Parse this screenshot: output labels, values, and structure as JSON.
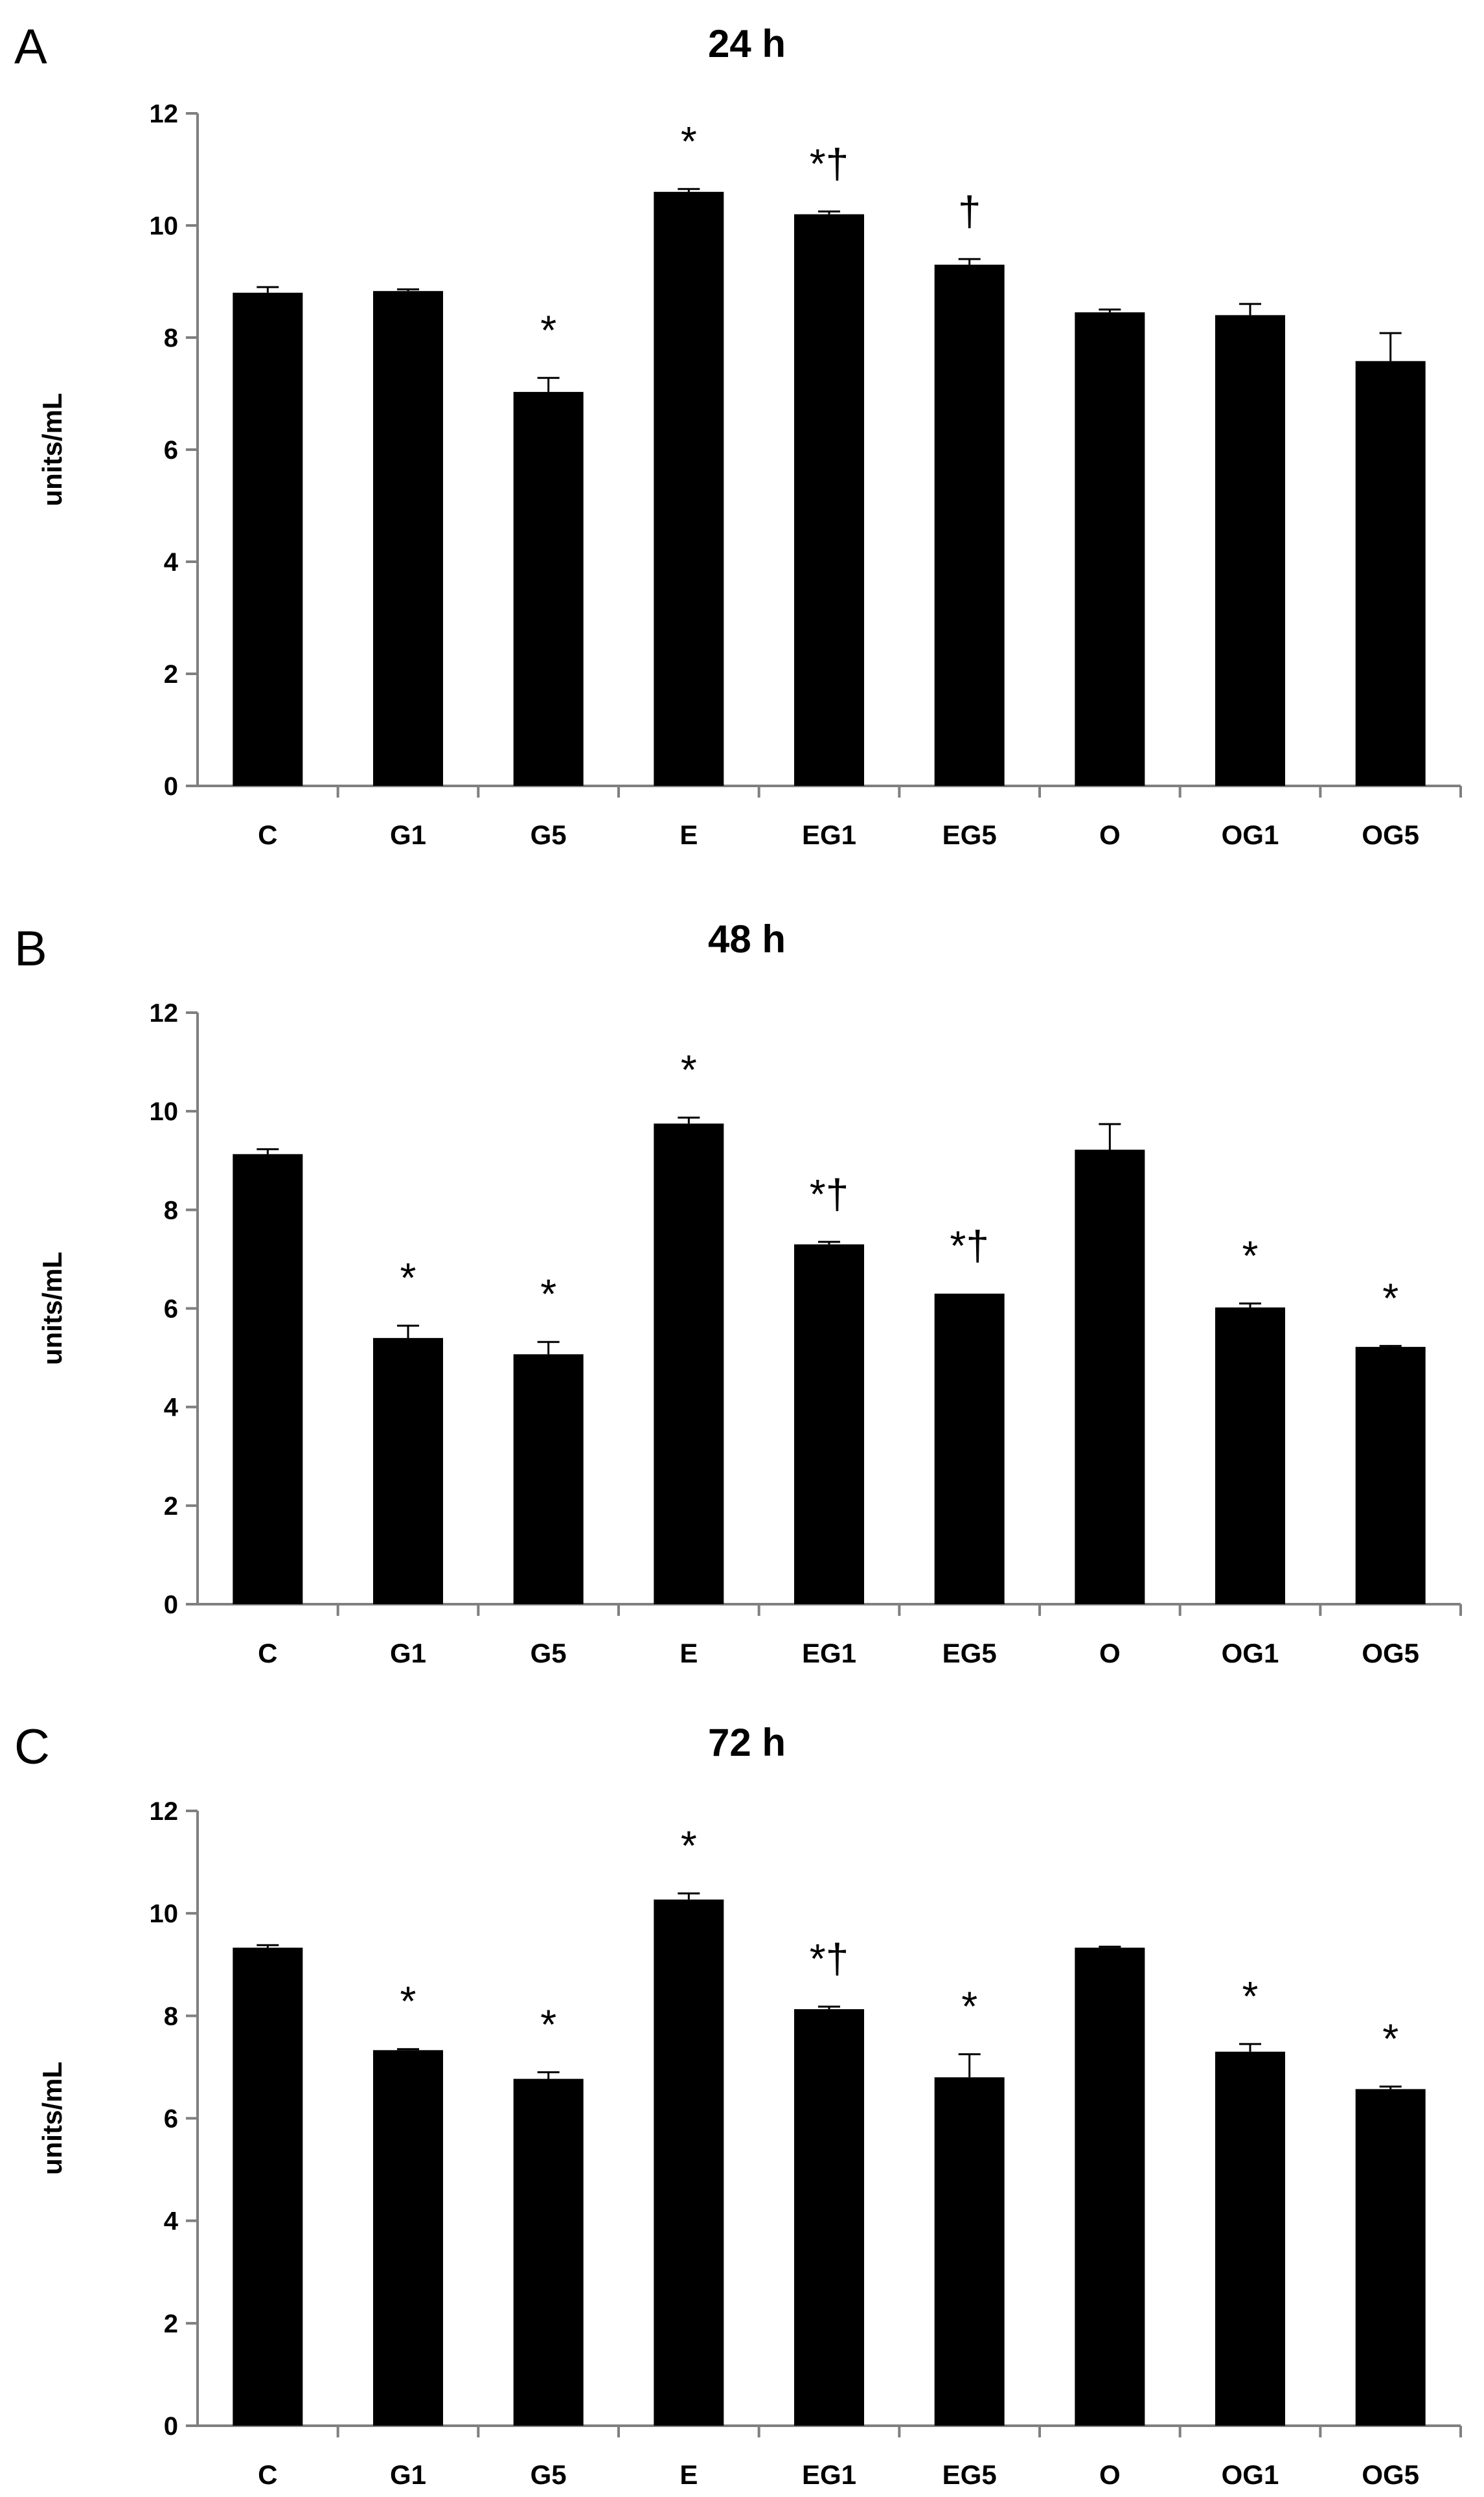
{
  "figure": {
    "description_panels": [
      "A",
      "B",
      "C"
    ]
  },
  "chart_data": [
    {
      "type": "bar",
      "panel_label": "A",
      "title": "24 h",
      "xlabel": "",
      "ylabel": "units/mL",
      "ylim": [
        0,
        12
      ],
      "yticks": [
        0,
        2,
        4,
        6,
        8,
        10,
        12
      ],
      "grid": false,
      "categories": [
        "C",
        "G1",
        "G5",
        "E",
        "EG1",
        "EG5",
        "O",
        "OG1",
        "OG5"
      ],
      "values": [
        8.8,
        8.83,
        7.03,
        10.6,
        10.2,
        9.3,
        8.45,
        8.4,
        7.58
      ],
      "errors": [
        0.1,
        0.03,
        0.25,
        0.05,
        0.05,
        0.1,
        0.05,
        0.2,
        0.5
      ],
      "annotations": [
        "",
        "",
        "*",
        "*",
        "*†",
        "†",
        "",
        "",
        ""
      ]
    },
    {
      "type": "bar",
      "panel_label": "B",
      "title": "48 h",
      "xlabel": "",
      "ylabel": "units/mL",
      "ylim": [
        0,
        12
      ],
      "yticks": [
        0,
        2,
        4,
        6,
        8,
        10,
        12
      ],
      "grid": false,
      "categories": [
        "C",
        "G1",
        "G5",
        "E",
        "EG1",
        "EG5",
        "O",
        "OG1",
        "OG5"
      ],
      "values": [
        9.13,
        5.4,
        5.07,
        9.75,
        7.3,
        6.3,
        9.22,
        6.02,
        5.22
      ],
      "errors": [
        0.1,
        0.25,
        0.25,
        0.12,
        0.05,
        0.0,
        0.52,
        0.08,
        0.02
      ],
      "annotations": [
        "",
        "*",
        "*",
        "*",
        "*†",
        "*†",
        "",
        "*",
        "*"
      ]
    },
    {
      "type": "bar",
      "panel_label": "C",
      "title": "72 h",
      "xlabel": "",
      "ylabel": "units/mL",
      "ylim": [
        0,
        12
      ],
      "yticks": [
        0,
        2,
        4,
        6,
        8,
        10,
        12
      ],
      "grid": false,
      "categories": [
        "C",
        "G1",
        "G5",
        "E",
        "EG1",
        "EG5",
        "O",
        "OG1",
        "OG5"
      ],
      "values": [
        9.33,
        7.33,
        6.77,
        10.27,
        8.13,
        6.8,
        9.33,
        7.3,
        6.57
      ],
      "errors": [
        0.05,
        0.02,
        0.13,
        0.12,
        0.05,
        0.45,
        0.02,
        0.15,
        0.05
      ],
      "annotations": [
        "",
        "*",
        "*",
        "*",
        "*†",
        "*",
        "",
        "*",
        "*"
      ]
    }
  ]
}
